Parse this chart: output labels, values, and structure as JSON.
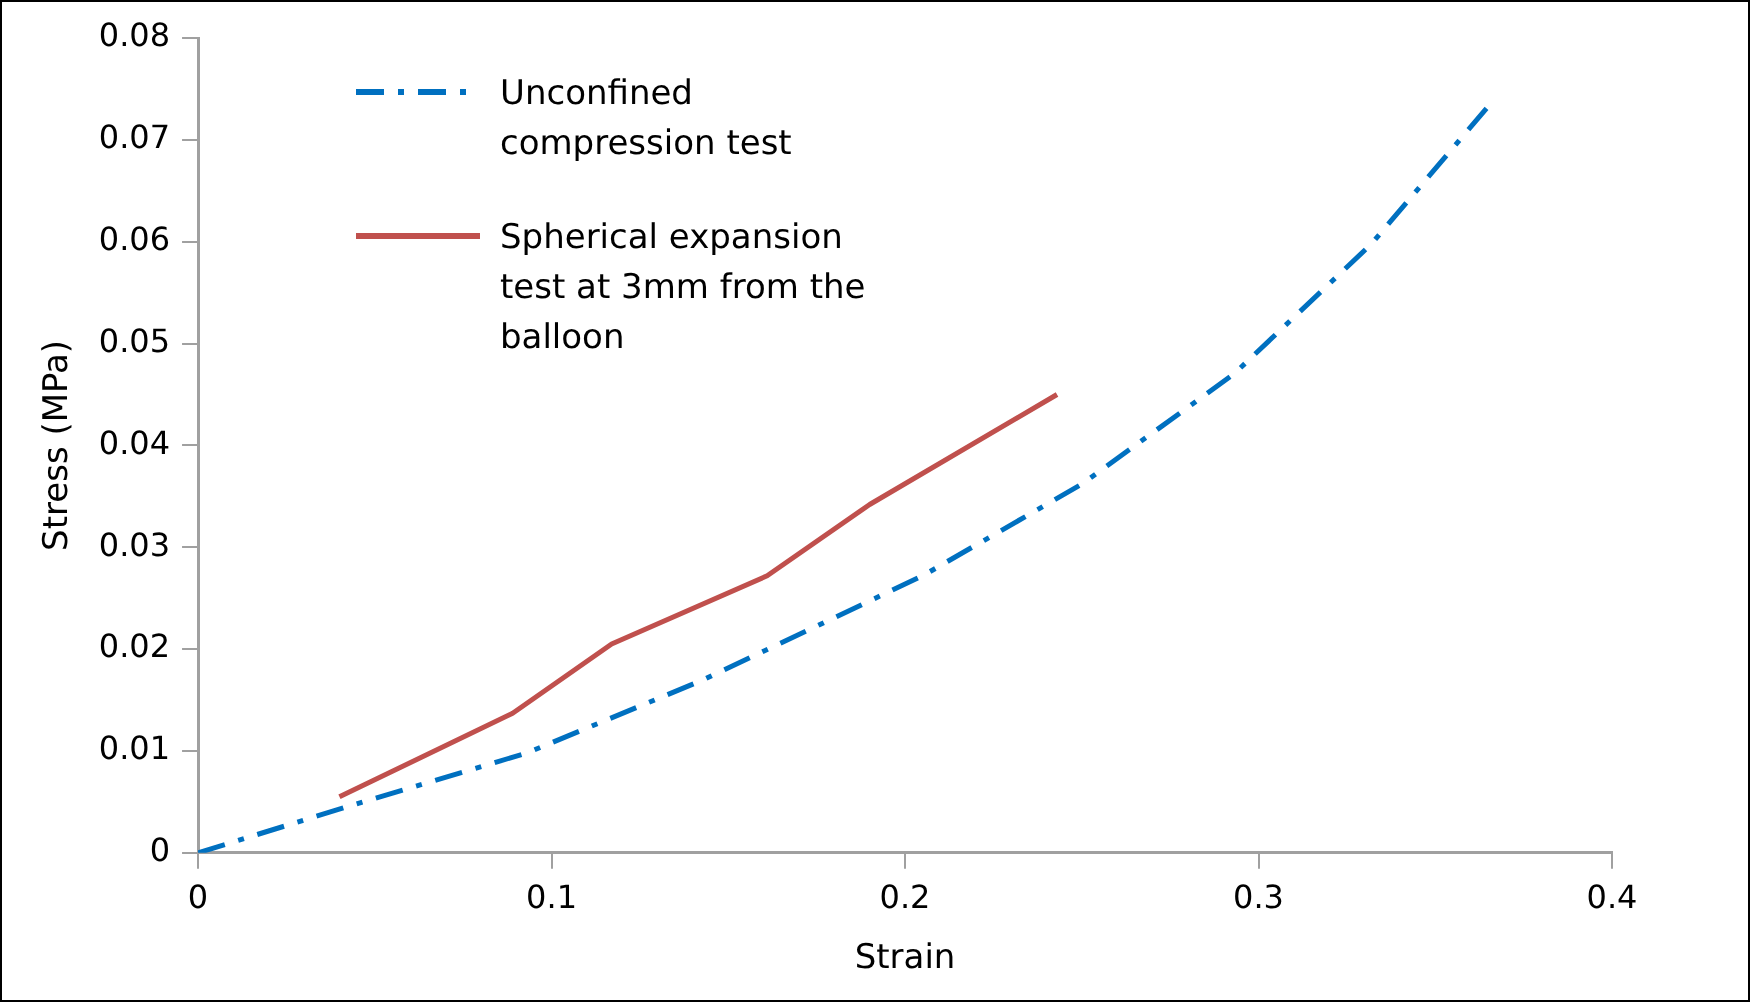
{
  "chart_data": {
    "type": "line",
    "xlabel": "Strain",
    "ylabel": "Stress (MPa)",
    "xlim": [
      0,
      0.4
    ],
    "xticks": [
      0,
      0.1,
      0.2,
      0.3,
      0.4
    ],
    "ylim": [
      0,
      0.08
    ],
    "yticks": [
      0,
      0.01,
      0.02,
      0.03,
      0.04,
      0.05,
      0.06,
      0.07,
      0.08
    ],
    "grid": false,
    "legend": "top left",
    "marker": "none",
    "series": [
      {
        "name": "Unconfined compression test",
        "color": "#0070c0",
        "line_style": "dashed",
        "x": [
          0,
          0.042,
          0.093,
          0.143,
          0.205,
          0.25,
          0.293,
          0.332,
          0.365
        ],
        "values": [
          0,
          0.0045,
          0.0098,
          0.017,
          0.0272,
          0.0362,
          0.047,
          0.0598,
          0.0733
        ]
      },
      {
        "name": "Spherical expansion test at 3mm from the balloon",
        "color": "#c0504d",
        "line_style": "solid",
        "x": [
          0.04,
          0.089,
          0.117,
          0.161,
          0.19,
          0.243
        ],
        "values": [
          0.0055,
          0.0137,
          0.0205,
          0.0272,
          0.0342,
          0.045
        ]
      }
    ]
  }
}
